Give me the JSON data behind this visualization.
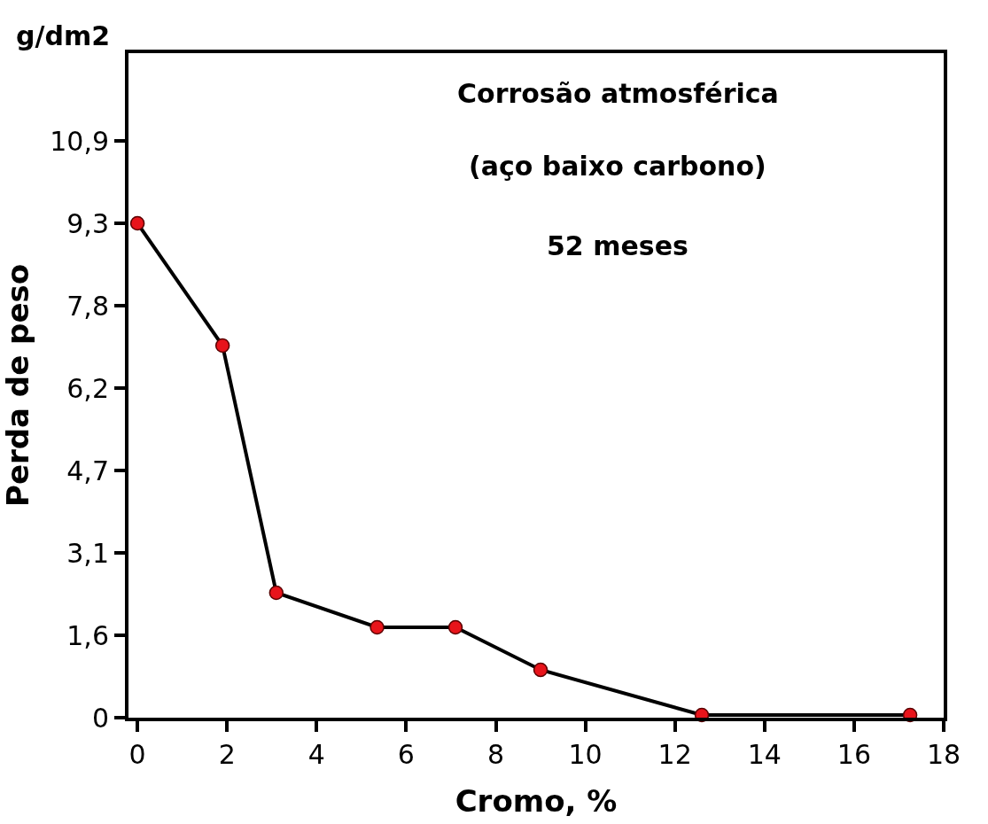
{
  "chart_data": {
    "type": "line",
    "xlabel": "Cromo, %",
    "ylabel": "Perda de peso",
    "annotations": [
      "Corrosão atmosférica",
      "(aço baixo carbono)",
      "52 meses",
      "g/dm2"
    ],
    "series": [
      {
        "color": "#000000",
        "colors": [
          "#e8141b",
          "#e8141b",
          "#e8141b",
          "#e8141b",
          "#e8141b",
          "#e8141b",
          "#e8141b",
          "#e8141b"
        ],
        "x": [
          0,
          1.9,
          3.1,
          5.35,
          7.1,
          9.0,
          12.6,
          17.25
        ],
        "values": [
          9.3,
          7.0,
          2.35,
          1.7,
          1.7,
          0.9,
          0.05,
          0.05
        ]
      }
    ],
    "xlim": [
      -0.2,
      18
    ],
    "ylim": [
      0,
      12.5
    ],
    "xticks": [
      0,
      2,
      4,
      6,
      8,
      10,
      12,
      14,
      16,
      18
    ],
    "yticks": [
      0,
      {
        "value": 1.55,
        "label": "1,6"
      },
      {
        "value": 3.1,
        "label": "3,1"
      },
      {
        "value": 4.65,
        "label": "4,7"
      },
      {
        "value": 6.2,
        "label": "6,2"
      },
      {
        "value": 7.75,
        "label": "7,8"
      },
      {
        "value": 9.3,
        "label": "9,3"
      },
      {
        "value": 10.85,
        "label": "10,9"
      }
    ],
    "legend": false,
    "marker": "circle",
    "line_style": "solid"
  }
}
